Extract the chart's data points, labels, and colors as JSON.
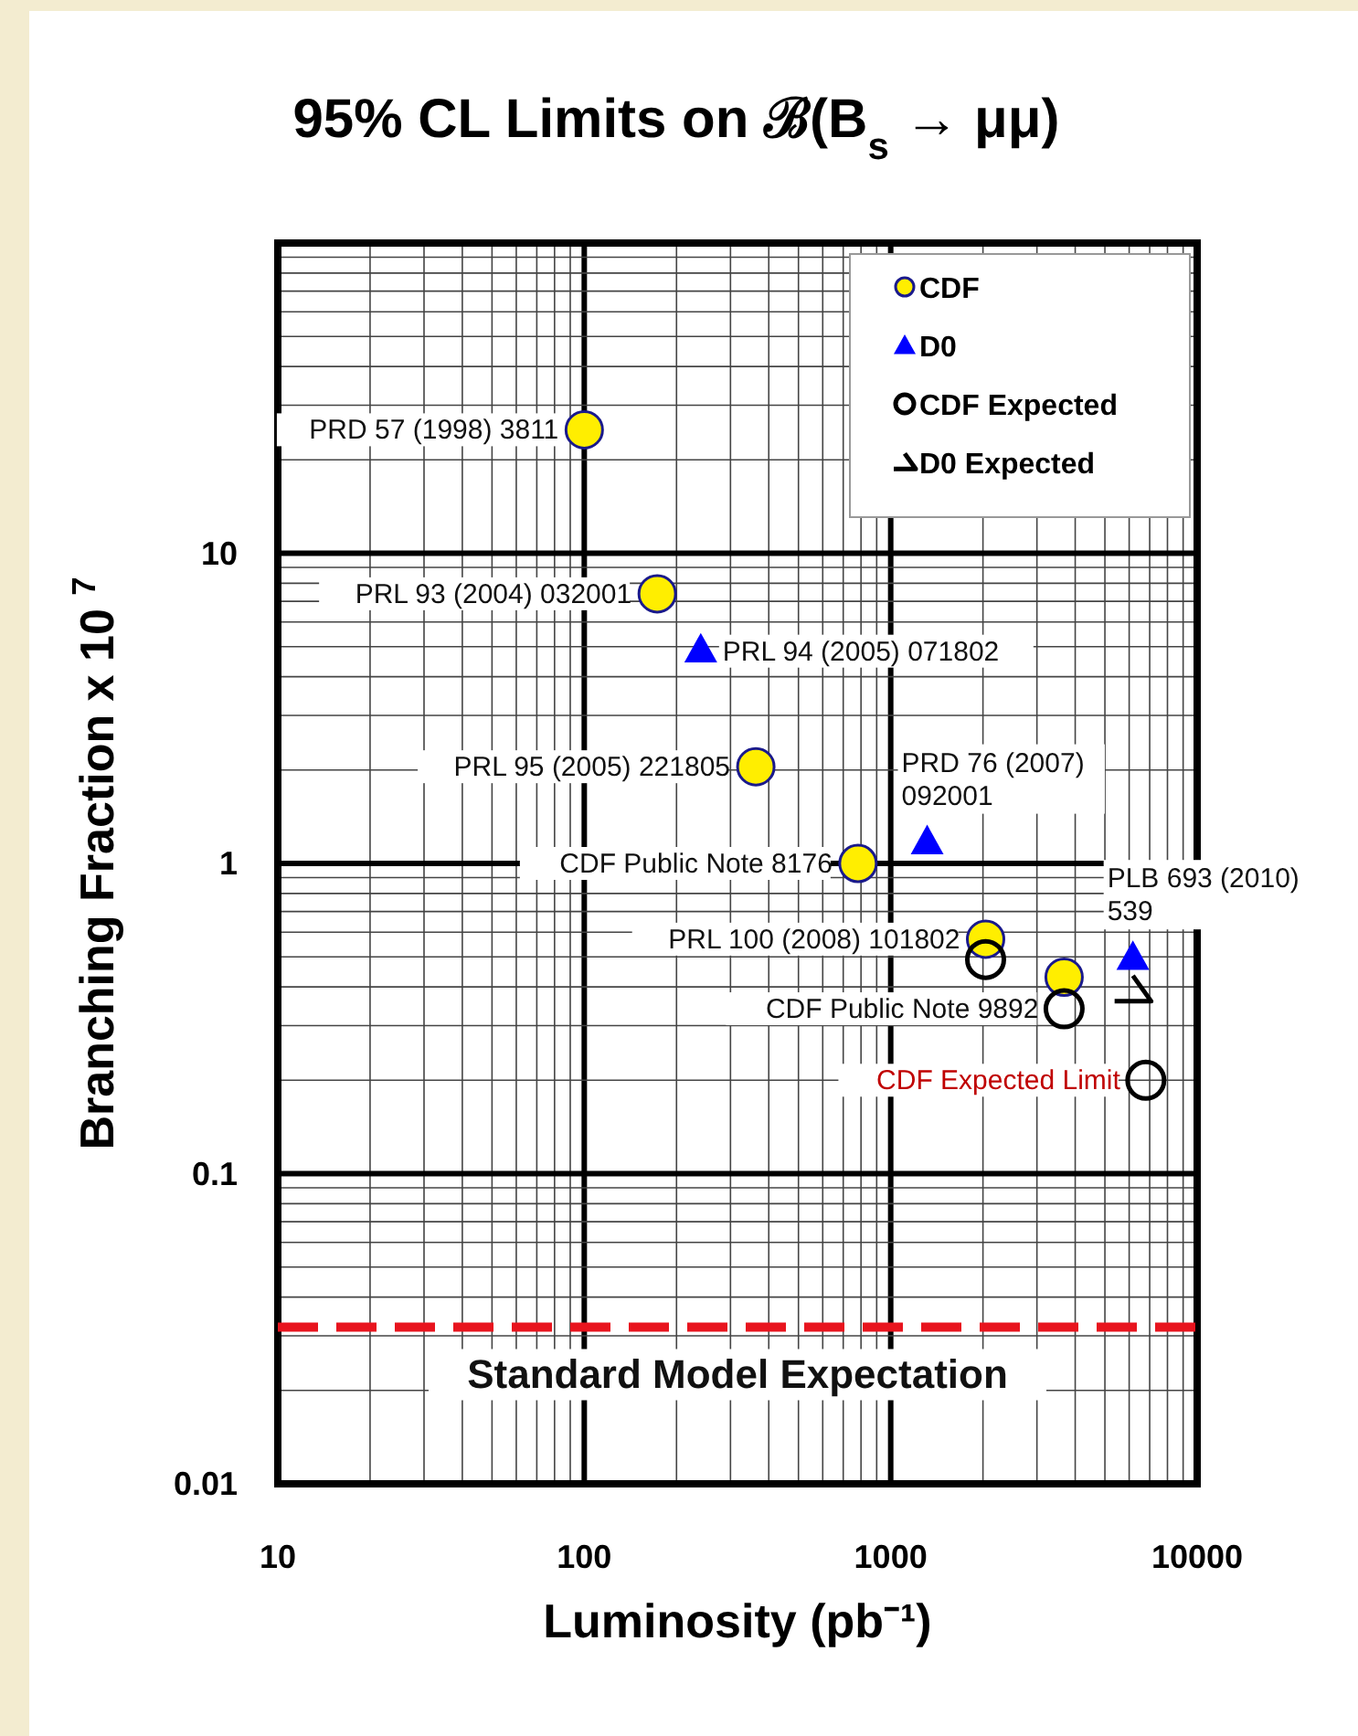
{
  "chart_data": {
    "type": "scatter",
    "title": "95% CL Limits on ℬ(B$_{s}$ → μμ)",
    "xlabel": "Luminosity (pb⁻¹)",
    "ylabel": "Branching Fraction x 10 $^{7}$",
    "log": "xy",
    "grid": true,
    "legend": "top right",
    "xlim": [
      10,
      10000
    ],
    "ylim": [
      0.01,
      100
    ],
    "xticks": [
      10,
      100,
      1000,
      10000
    ],
    "yticks": [
      0.01,
      0.1,
      1,
      10
    ],
    "series": [
      {
        "name": "CDF",
        "color": "#ffee00",
        "marker": "circle",
        "x": [
          100,
          173,
          363,
          782,
          2040,
          3680
        ],
        "values": [
          25,
          7.4,
          2.05,
          1.0,
          0.57,
          0.43
        ]
      },
      {
        "name": "D0",
        "color": "#0000ff",
        "marker": "triangle",
        "x": [
          240,
          1315,
          6170
        ],
        "values": [
          4.9,
          1.18,
          0.5
        ]
      },
      {
        "name": "CDF Expected",
        "color": "#000000",
        "marker": "circle",
        "x": [
          2040,
          3680,
          6800
        ],
        "values": [
          0.49,
          0.34,
          0.2
        ]
      },
      {
        "name": "D0 Expected",
        "color": "#000000",
        "marker": "cross",
        "x": [
          6170
        ],
        "values": [
          0.39
        ]
      }
    ],
    "ref_lines": [
      {
        "axis": "y",
        "value": 0.032,
        "label": "Standard Model Expectation",
        "color": "#e8141e",
        "line_style": "dashed"
      }
    ],
    "annotations": [
      {
        "text": "PRD 57 (1998) 3811",
        "x": 100,
        "y": 25
      },
      {
        "text": "PRL 93 (2004) 032001",
        "x": 173,
        "y": 7.4
      },
      {
        "text": "PRL 94 (2005) 071802",
        "x": 240,
        "y": 4.9
      },
      {
        "text": "PRL 95 (2005) 221805",
        "x": 363,
        "y": 2.05
      },
      {
        "text": "PRD 76 (2007) 092001",
        "x": 1315,
        "y": 1.18
      },
      {
        "text": "CDF Public Note 8176",
        "x": 782,
        "y": 1.0
      },
      {
        "text": "PLB 693 (2010) 539",
        "x": 6170,
        "y": 0.5
      },
      {
        "text": "PRL 100 (2008) 101802",
        "x": 2040,
        "y": 0.57
      },
      {
        "text": "CDF Public Note 9892",
        "x": 3680,
        "y": 0.34
      },
      {
        "text": "CDF Expected Limit",
        "x": 6800,
        "y": 0.2
      }
    ]
  }
}
